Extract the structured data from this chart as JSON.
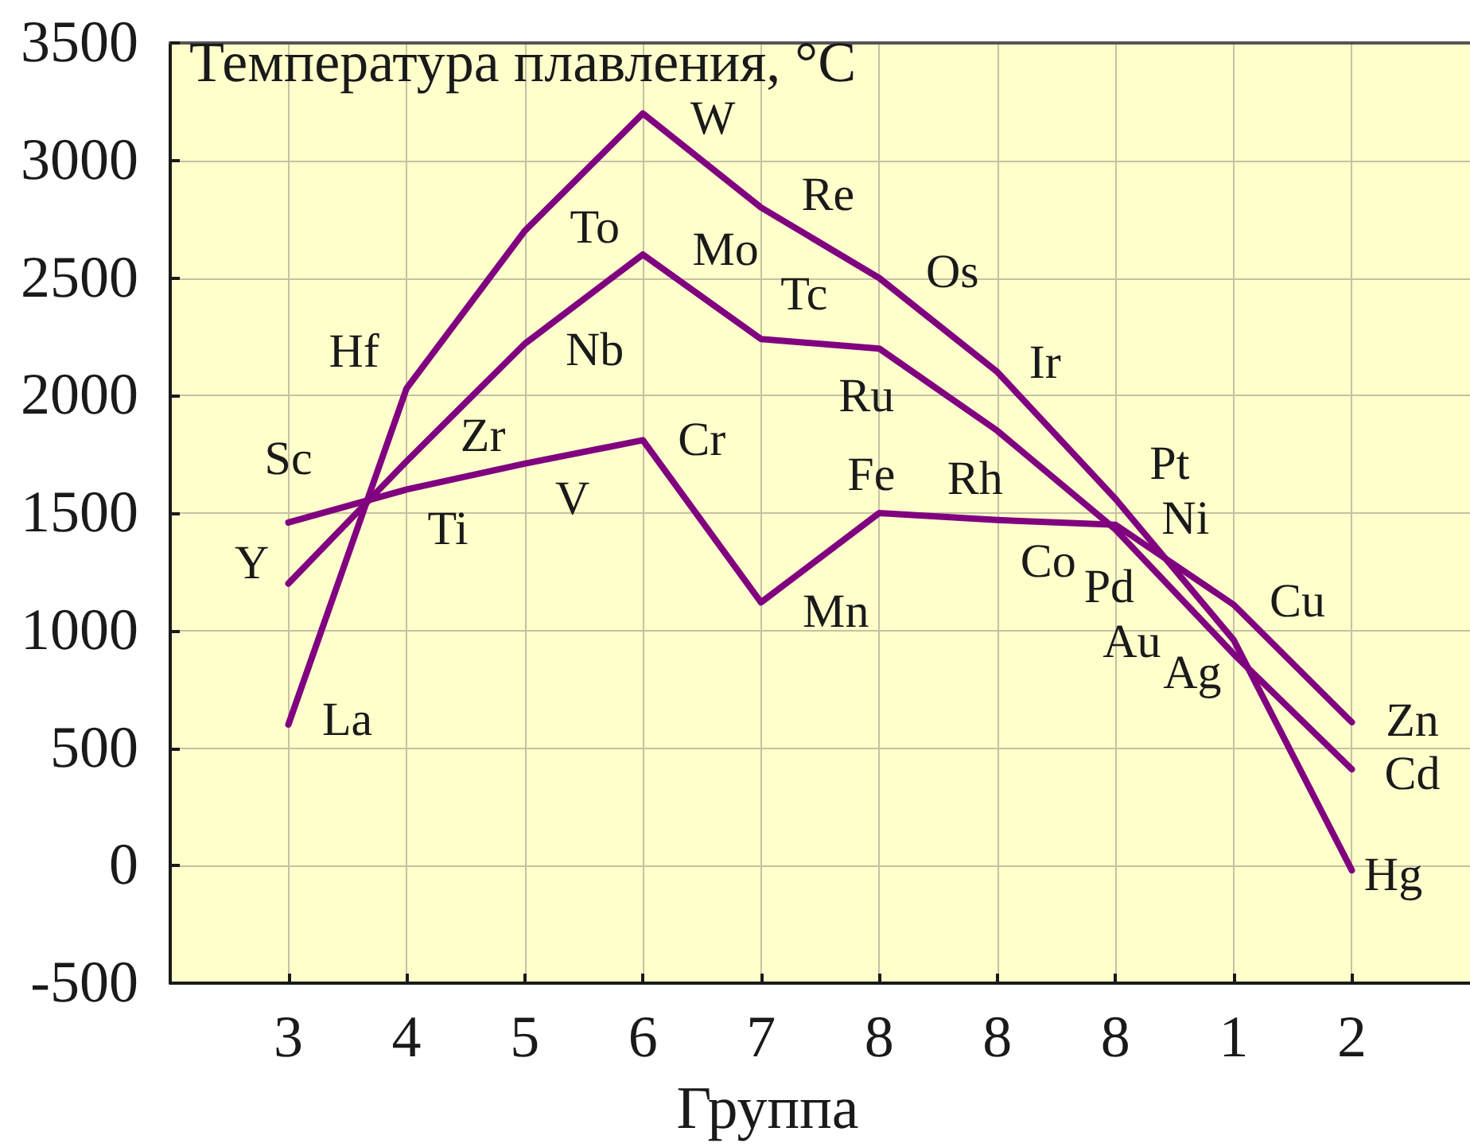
{
  "chart_data": {
    "type": "line",
    "title": "Температура плавления, °C",
    "xlabel": "Группа",
    "categories": [
      "3",
      "4",
      "5",
      "6",
      "7",
      "8",
      "8",
      "8",
      "1",
      "2"
    ],
    "series": [
      {
        "color": "#800080",
        "values": [
          1460,
          1600,
          1710,
          1810,
          1120,
          1500,
          1470,
          1450,
          1110,
          610
        ],
        "value_labels": [
          "Sc",
          "Ti",
          "V",
          "Cr",
          "Mn",
          "Fe",
          "Co",
          "Ni",
          "Cu",
          "Zn"
        ]
      },
      {
        "color": "#800080",
        "values": [
          1200,
          1720,
          2220,
          2600,
          2240,
          2200,
          1850,
          1430,
          900,
          410
        ],
        "value_labels": [
          "Y",
          "Zr",
          "Nb",
          "Mo",
          "Tc",
          "Ru",
          "Rh",
          "Pd",
          "Ag",
          "Cd"
        ]
      },
      {
        "color": "#800080",
        "values": [
          600,
          2030,
          2700,
          3200,
          2800,
          2500,
          2100,
          1560,
          960,
          -20
        ],
        "value_labels": [
          "La",
          "Hf",
          "To",
          "W",
          "Re",
          "Os",
          "Ir",
          "Pt",
          "Au",
          "Hg"
        ]
      }
    ],
    "ylim": [
      -500,
      3500
    ],
    "yticks": [
      -500,
      0,
      500,
      1000,
      1500,
      2000,
      2500,
      3000,
      3500
    ],
    "grid": true,
    "marker": "none",
    "line_style": "solid"
  }
}
